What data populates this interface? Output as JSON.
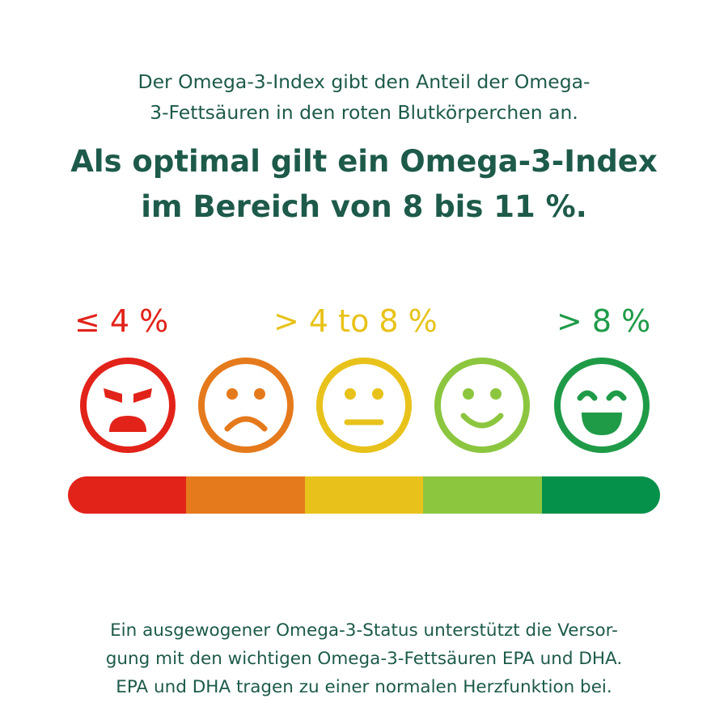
{
  "intro": {
    "line1": "Der Omega-3-Index gibt den Anteil der Omega-",
    "line2": "3-Fettsäuren in den roten Blutkörperchen an."
  },
  "headline": {
    "line1": "Als optimal gilt ein Omega-3-Index",
    "line2": "im Bereich von 8 bis 11 %."
  },
  "ranges": [
    {
      "label": "≤ 4 %",
      "color": "#e2231a"
    },
    {
      "label": "> 4 to 8 %",
      "color": "#e8c21a"
    },
    {
      "label": "> 8 %",
      "color": "#1f9b48"
    }
  ],
  "faces": [
    {
      "icon": "angry-face-icon",
      "color": "#e2231a"
    },
    {
      "icon": "sad-face-icon",
      "color": "#e57a1c"
    },
    {
      "icon": "neutral-face-icon",
      "color": "#e8c21a"
    },
    {
      "icon": "smile-face-icon",
      "color": "#8cc63f"
    },
    {
      "icon": "happy-face-icon",
      "color": "#1f9b48"
    }
  ],
  "scale_colors": [
    "#e2231a",
    "#e57a1c",
    "#e8c21a",
    "#8cc63f",
    "#06914a"
  ],
  "outro": {
    "line1": "Ein ausgewogener Omega-3-Status unterstützt die Versor-",
    "line2": "gung mit den wichtigen Omega-3-Fettsäuren EPA und DHA.",
    "line3": "EPA und DHA tragen zu einer normalen Herzfunktion bei."
  }
}
